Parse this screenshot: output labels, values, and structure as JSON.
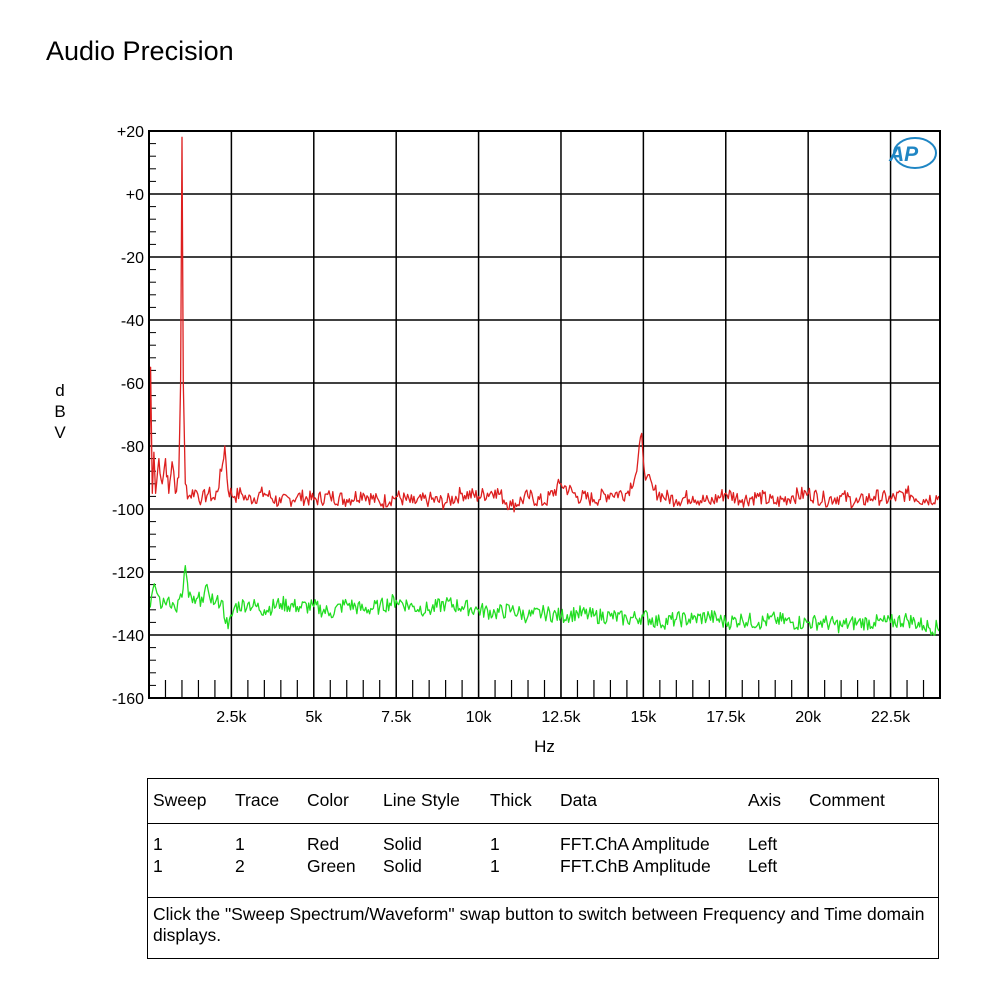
{
  "title": "Audio Precision",
  "logo": {
    "text": "AP",
    "color": "#1f86c4"
  },
  "chart_data": {
    "type": "line",
    "title": "",
    "xlabel": "Hz",
    "ylabel": "dBV",
    "xlim": [
      0,
      24000
    ],
    "ylim": [
      -160,
      20
    ],
    "grid": true,
    "y_ticks": [
      20,
      0,
      -20,
      -40,
      -60,
      -80,
      -100,
      -120,
      -140,
      -160
    ],
    "y_tick_labels": [
      "+20",
      "+0",
      "-20",
      "-40",
      "-60",
      "-80",
      "-100",
      "-120",
      "-140",
      "-160"
    ],
    "x_ticks": [
      2500,
      5000,
      7500,
      10000,
      12500,
      15000,
      17500,
      20000,
      22500
    ],
    "x_tick_labels": [
      "2.5k",
      "5k",
      "7.5k",
      "10k",
      "12.5k",
      "15k",
      "17.5k",
      "20k",
      "22.5k"
    ],
    "series": [
      {
        "color": "#dd1f1f",
        "x": [
          0,
          50,
          100,
          150,
          200,
          300,
          400,
          500,
          600,
          700,
          750,
          800,
          900,
          960,
          1000,
          1040,
          1100,
          1200,
          1400,
          1600,
          1800,
          2000,
          2200,
          2300,
          2400,
          2600,
          2800,
          3000,
          3500,
          4000,
          4500,
          5000,
          5500,
          6000,
          6500,
          7000,
          7500,
          8000,
          8500,
          9000,
          9500,
          10000,
          10500,
          11000,
          11500,
          12000,
          12500,
          13000,
          13500,
          14000,
          14500,
          14800,
          14950,
          15000,
          15100,
          15300,
          15600,
          16000,
          16500,
          17000,
          17500,
          18000,
          18500,
          19000,
          19500,
          20000,
          20500,
          21000,
          21500,
          22000,
          22500,
          23000,
          23500,
          24000
        ],
        "y": [
          -97,
          -55,
          -95,
          -82,
          -95,
          -84,
          -92,
          -84,
          -95,
          -85,
          -88,
          -95,
          -90,
          -60,
          18,
          -60,
          -92,
          -96,
          -94,
          -97,
          -95,
          -97,
          -88,
          -80,
          -94,
          -96,
          -95,
          -97,
          -95,
          -98,
          -96,
          -97,
          -96,
          -97,
          -95,
          -98,
          -96,
          -98,
          -97,
          -98,
          -95,
          -96,
          -94,
          -99,
          -96,
          -98,
          -92,
          -96,
          -97,
          -95,
          -95,
          -88,
          -76,
          -85,
          -90,
          -94,
          -96,
          -97,
          -96,
          -98,
          -95,
          -97,
          -96,
          -98,
          -96,
          -95,
          -97,
          -96,
          -98,
          -96,
          -97,
          -95,
          -97,
          -96
        ]
      },
      {
        "color": "#22dd22",
        "x": [
          0,
          200,
          400,
          600,
          800,
          1000,
          1100,
          1200,
          1400,
          1600,
          1800,
          2000,
          2200,
          2400,
          2600,
          3000,
          3500,
          4000,
          4500,
          5000,
          5500,
          6000,
          6500,
          7000,
          7500,
          8000,
          8500,
          9000,
          9500,
          10000,
          10500,
          11000,
          11500,
          12000,
          12500,
          13000,
          13500,
          14000,
          14500,
          15000,
          15500,
          16000,
          16500,
          17000,
          17500,
          18000,
          18500,
          19000,
          19500,
          20000,
          20500,
          21000,
          21500,
          22000,
          22500,
          23000,
          23500,
          24000
        ],
        "y": [
          -130,
          -125,
          -131,
          -128,
          -132,
          -128,
          -118,
          -128,
          -130,
          -128,
          -126,
          -130,
          -129,
          -138,
          -131,
          -130,
          -132,
          -130,
          -131,
          -131,
          -133,
          -130,
          -132,
          -131,
          -129,
          -131,
          -132,
          -130,
          -131,
          -132,
          -133,
          -132,
          -134,
          -133,
          -134,
          -133,
          -134,
          -134,
          -135,
          -134,
          -136,
          -135,
          -135,
          -134,
          -136,
          -135,
          -136,
          -135,
          -136,
          -136,
          -136,
          -137,
          -136,
          -136,
          -136,
          -135,
          -137,
          -138
        ]
      }
    ]
  },
  "legend": {
    "headers": [
      "Sweep",
      "Trace",
      "Color",
      "Line Style",
      "Thick",
      "Data",
      "Axis",
      "Comment"
    ],
    "rows": [
      [
        "1",
        "1",
        "Red",
        "Solid",
        "1",
        "FFT.ChA Amplitude",
        "Left",
        ""
      ],
      [
        "1",
        "2",
        "Green",
        "Solid",
        "1",
        "FFT.ChB Amplitude",
        "Left",
        ""
      ]
    ],
    "note": "Click the \"Sweep Spectrum/Waveform\" swap button to switch between Frequency and Time domain displays."
  }
}
